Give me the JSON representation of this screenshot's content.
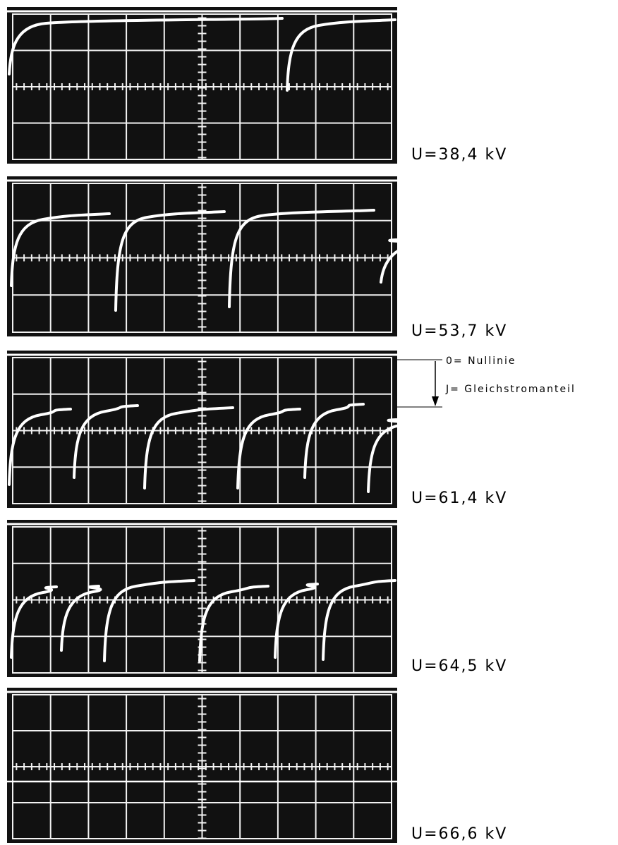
{
  "panels": [
    {
      "label": "U=38,4 kV"
    },
    {
      "label": "U=53,7 kV"
    },
    {
      "label": "U=61,4 kV"
    },
    {
      "label": "U=64,5 kV"
    },
    {
      "label": "U=66,6 kV"
    }
  ],
  "legend": {
    "zero_line": "0= Nullinie",
    "dc_component": "J= Gleichstromanteil"
  }
}
